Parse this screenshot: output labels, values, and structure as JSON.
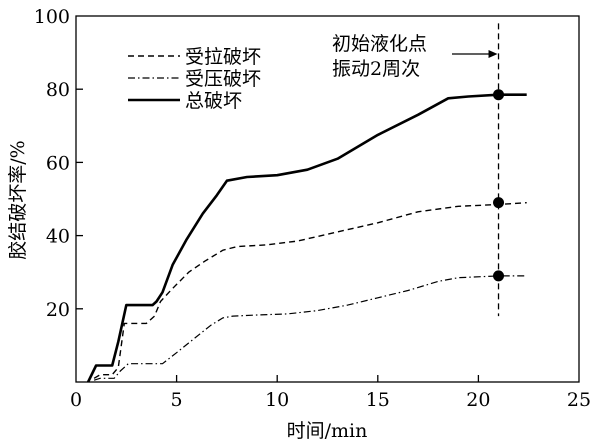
{
  "chart_data": {
    "type": "line",
    "xlabel": "时间/min",
    "ylabel": "胶结破坏率/%",
    "xlim": [
      0,
      25
    ],
    "ylim": [
      0,
      100
    ],
    "xticks": [
      0,
      5,
      10,
      15,
      20,
      25
    ],
    "yticks": [
      20,
      40,
      60,
      80,
      100
    ],
    "grid": false,
    "legend_position": "top-left",
    "series": [
      {
        "name": "受拉破坏",
        "style": "dashed",
        "color": "#000000",
        "points": [
          [
            0.9,
            1
          ],
          [
            1.2,
            2
          ],
          [
            1.8,
            2
          ],
          [
            2.1,
            4
          ],
          [
            2.4,
            16
          ],
          [
            3.5,
            16
          ],
          [
            3.9,
            18
          ],
          [
            4.2,
            22
          ],
          [
            4.7,
            25
          ],
          [
            5.6,
            30
          ],
          [
            6.4,
            33
          ],
          [
            7.3,
            36
          ],
          [
            8.0,
            37
          ],
          [
            9.5,
            37.5
          ],
          [
            11.0,
            38.5
          ],
          [
            13.0,
            41
          ],
          [
            15.0,
            43.5
          ],
          [
            17.0,
            46.5
          ],
          [
            19.0,
            48
          ],
          [
            21.0,
            48.5
          ],
          [
            22.4,
            49
          ]
        ]
      },
      {
        "name": "受压破坏",
        "style": "dash-dot",
        "color": "#000000",
        "points": [
          [
            0.9,
            0.5
          ],
          [
            1.2,
            1
          ],
          [
            1.9,
            1
          ],
          [
            2.2,
            3
          ],
          [
            2.6,
            5
          ],
          [
            4.3,
            5
          ],
          [
            5.0,
            8
          ],
          [
            5.9,
            12
          ],
          [
            6.7,
            15.5
          ],
          [
            7.3,
            17.5
          ],
          [
            7.8,
            18
          ],
          [
            9.0,
            18.3
          ],
          [
            10.5,
            18.6
          ],
          [
            12.0,
            19.5
          ],
          [
            13.5,
            21
          ],
          [
            15.0,
            23
          ],
          [
            16.5,
            25
          ],
          [
            18.0,
            27.5
          ],
          [
            19.0,
            28.5
          ],
          [
            21.0,
            29
          ],
          [
            22.4,
            29
          ]
        ]
      },
      {
        "name": "总破坏",
        "style": "solid",
        "color": "#000000",
        "points": [
          [
            0.6,
            0
          ],
          [
            1.0,
            4.5
          ],
          [
            1.8,
            4.5
          ],
          [
            2.1,
            11
          ],
          [
            2.5,
            21
          ],
          [
            3.8,
            21
          ],
          [
            4.0,
            22
          ],
          [
            4.3,
            24.5
          ],
          [
            4.8,
            32
          ],
          [
            5.5,
            39
          ],
          [
            6.3,
            46
          ],
          [
            7.0,
            51
          ],
          [
            7.5,
            55
          ],
          [
            8.5,
            56
          ],
          [
            10.0,
            56.5
          ],
          [
            11.5,
            58
          ],
          [
            13.0,
            61
          ],
          [
            15.0,
            67.5
          ],
          [
            17.0,
            73
          ],
          [
            18.5,
            77.5
          ],
          [
            19.5,
            78
          ],
          [
            21.0,
            78.5
          ],
          [
            22.4,
            78.5
          ]
        ]
      }
    ],
    "markers": [
      {
        "x": 21,
        "y": 78.5,
        "shape": "filled-circle"
      },
      {
        "x": 21,
        "y": 49,
        "shape": "filled-circle"
      },
      {
        "x": 21,
        "y": 29,
        "shape": "filled-circle"
      }
    ],
    "reference_line": {
      "x": 21,
      "style": "dashed",
      "y_range": [
        18,
        98
      ]
    },
    "annotations": {
      "line1": "初始液化点",
      "line2": "振动2周次",
      "arrow_target_x": 21
    }
  }
}
